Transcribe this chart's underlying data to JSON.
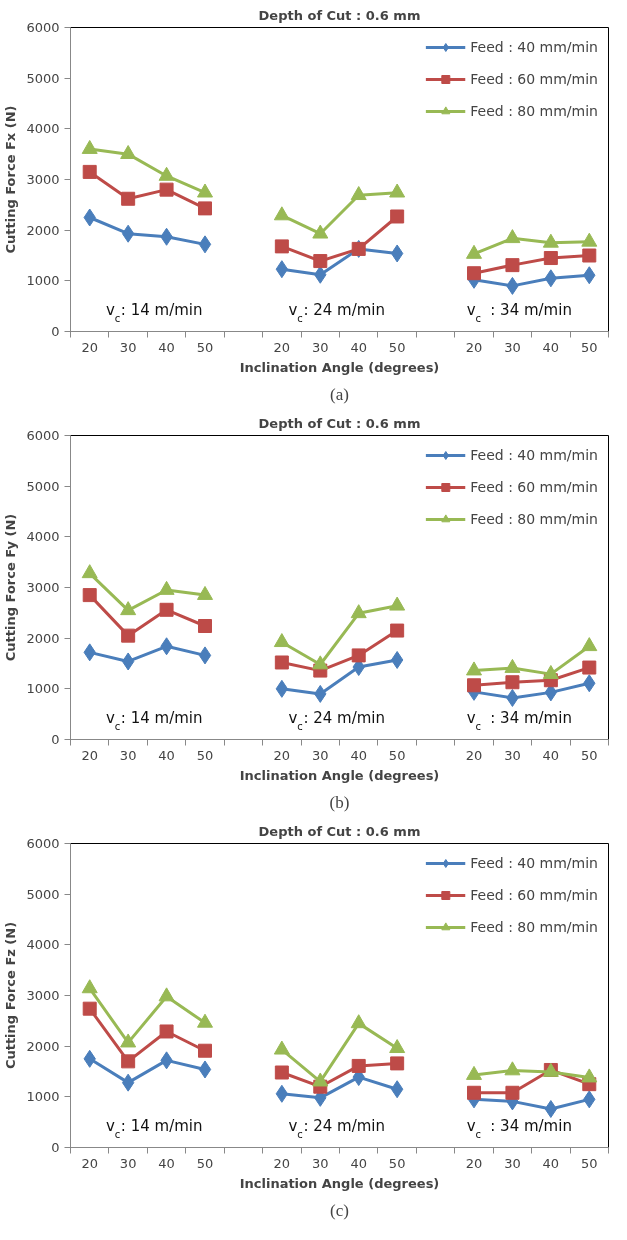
{
  "chart_data": [
    {
      "type": "line",
      "title": "Depth of Cut : 0.6 mm",
      "xlabel": "Inclination Angle (degrees)",
      "ylabel": "Cutting Force Fx (N)",
      "categories": [
        "20",
        "30",
        "40",
        "50",
        null,
        "20",
        "30",
        "40",
        "50",
        null,
        "20",
        "30",
        "40",
        "50"
      ],
      "ylim": [
        0,
        6000
      ],
      "yticks": [
        0,
        1000,
        2000,
        3000,
        4000,
        5000,
        6000
      ],
      "grid": false,
      "legend": "top right",
      "annotations": [
        "v$_{c}$: 14 m/min",
        "v$_{c}$: 24 m/min",
        "v$_{c}$ : 34 m/min",
        "(a)"
      ],
      "series": [
        {
          "name": "Feed : 40 mm/min",
          "color": "#4a7ebb",
          "marker": "diamond",
          "values": [
            2250,
            1930,
            1870,
            1720,
            null,
            1230,
            1120,
            1630,
            1540,
            null,
            1020,
            900,
            1050,
            1110
          ]
        },
        {
          "name": "Feed : 60 mm/min",
          "color": "#be4b48",
          "marker": "square",
          "values": [
            3150,
            2620,
            2800,
            2430,
            null,
            1680,
            1390,
            1630,
            2270,
            null,
            1150,
            1310,
            1450,
            1500
          ]
        },
        {
          "name": "Feed : 80 mm/min",
          "color": "#98b954",
          "marker": "triangle",
          "values": [
            3600,
            3500,
            3070,
            2740,
            null,
            2290,
            1930,
            2690,
            2740,
            null,
            1530,
            1840,
            1750,
            1770
          ]
        }
      ]
    },
    {
      "type": "line",
      "title": "Depth of Cut : 0.6 mm",
      "xlabel": "Inclination Angle (degrees)",
      "ylabel": "Cutting Force Fy (N)",
      "categories": [
        "20",
        "30",
        "40",
        "50",
        null,
        "20",
        "30",
        "40",
        "50",
        null,
        "20",
        "30",
        "40",
        "50"
      ],
      "ylim": [
        0,
        6000
      ],
      "yticks": [
        0,
        1000,
        2000,
        3000,
        4000,
        5000,
        6000
      ],
      "grid": false,
      "legend": "top right",
      "annotations": [
        "v$_{c}$: 14 m/min",
        "v$_{c}$: 24 m/min",
        "v$_{c}$ : 34 m/min",
        "(b)"
      ],
      "series": [
        {
          "name": "Feed : 40 mm/min",
          "color": "#4a7ebb",
          "marker": "diamond",
          "values": [
            1720,
            1540,
            1840,
            1660,
            null,
            1000,
            900,
            1430,
            1570,
            null,
            940,
            820,
            930,
            1110
          ]
        },
        {
          "name": "Feed : 60 mm/min",
          "color": "#be4b48",
          "marker": "square",
          "values": [
            2850,
            2050,
            2560,
            2240,
            null,
            1520,
            1360,
            1660,
            2150,
            null,
            1070,
            1130,
            1170,
            1420
          ]
        },
        {
          "name": "Feed : 80 mm/min",
          "color": "#98b954",
          "marker": "triangle",
          "values": [
            3280,
            2550,
            2950,
            2850,
            null,
            1920,
            1480,
            2490,
            2640,
            null,
            1360,
            1410,
            1290,
            1840
          ]
        }
      ]
    },
    {
      "type": "line",
      "title": "Depth of Cut : 0.6 mm",
      "xlabel": "Inclination Angle (degrees)",
      "ylabel": "Cutting Force Fz (N)",
      "categories": [
        "20",
        "30",
        "40",
        "50",
        null,
        "20",
        "30",
        "40",
        "50",
        null,
        "20",
        "30",
        "40",
        "50"
      ],
      "ylim": [
        0,
        6000
      ],
      "yticks": [
        0,
        1000,
        2000,
        3000,
        4000,
        5000,
        6000
      ],
      "grid": false,
      "legend": "top right",
      "annotations": [
        "v$_{c}$: 14 m/min",
        "v$_{c}$: 24 m/min",
        "v$_{c}$ : 34 m/min",
        "(c)"
      ],
      "series": [
        {
          "name": "Feed : 40 mm/min",
          "color": "#4a7ebb",
          "marker": "diamond",
          "values": [
            1750,
            1280,
            1720,
            1540,
            null,
            1060,
            980,
            1390,
            1150,
            null,
            950,
            910,
            760,
            950
          ]
        },
        {
          "name": "Feed : 60 mm/min",
          "color": "#be4b48",
          "marker": "square",
          "values": [
            2740,
            1700,
            2290,
            1910,
            null,
            1480,
            1200,
            1610,
            1660,
            null,
            1080,
            1080,
            1530,
            1250
          ]
        },
        {
          "name": "Feed : 80 mm/min",
          "color": "#98b954",
          "marker": "triangle",
          "values": [
            3140,
            2070,
            2980,
            2460,
            null,
            1930,
            1300,
            2450,
            1960,
            null,
            1430,
            1520,
            1490,
            1380
          ]
        }
      ]
    }
  ]
}
